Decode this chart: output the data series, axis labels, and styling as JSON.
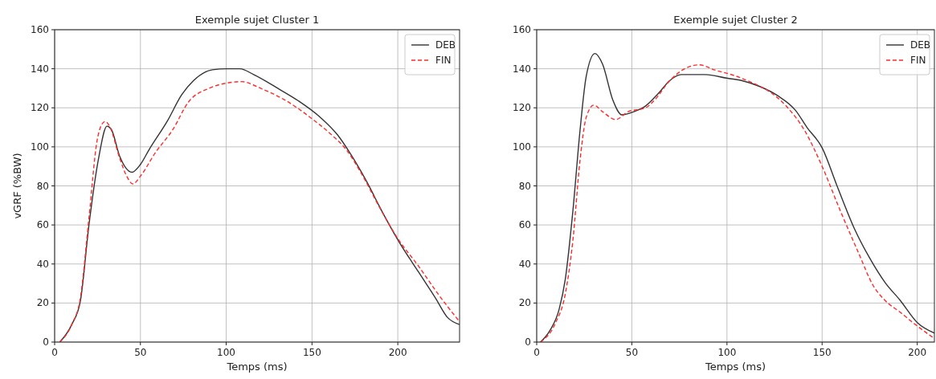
{
  "chart_data": [
    {
      "type": "line",
      "title": "Exemple sujet Cluster 1",
      "xlabel": "Temps (ms)",
      "ylabel": "vGRF (%BW)",
      "xlim": [
        0,
        236
      ],
      "ylim": [
        0,
        160
      ],
      "xticks": [
        0,
        50,
        100,
        150,
        200
      ],
      "yticks": [
        0,
        20,
        40,
        60,
        80,
        100,
        120,
        140,
        160
      ],
      "grid": true,
      "legend": "top right",
      "series": [
        {
          "name": "DEB",
          "color": "#333333",
          "line_style": "solid",
          "x": [
            3,
            10,
            15,
            20,
            25.6,
            30.5,
            33,
            38,
            45,
            50,
            55,
            66,
            74,
            81,
            92,
            100.5,
            108,
            116,
            130,
            142,
            155,
            165,
            172,
            182,
            191,
            200.7,
            212,
            222,
            229,
            236
          ],
          "values": [
            0,
            9,
            21,
            60,
            94,
            110.6,
            109,
            95,
            87,
            91,
            98.5,
            113.7,
            126.6,
            134,
            139.5,
            140,
            140,
            137,
            130,
            123.6,
            115,
            106,
            97,
            82,
            66.6,
            51.4,
            36,
            22.5,
            12.6,
            9
          ]
        },
        {
          "name": "FIN",
          "color": "#ff2a2a",
          "line_style": "dashed",
          "x": [
            3,
            10,
            15,
            20,
            24.7,
            27.4,
            29.4,
            32,
            38,
            42,
            45.6,
            50,
            58.7,
            69,
            78,
            90,
            100.5,
            109,
            121,
            133.6,
            151,
            161.6,
            170,
            179,
            189,
            200,
            212,
            224,
            235.5
          ],
          "values": [
            0,
            9,
            22.5,
            63.5,
            103,
            111.4,
            113,
            110.6,
            94,
            85,
            81,
            85,
            97,
            109,
            123,
            130,
            132.7,
            133.4,
            129.6,
            124.3,
            113.7,
            106,
            98.5,
            86,
            69.6,
            53,
            39,
            24,
            11
          ]
        }
      ]
    },
    {
      "type": "line",
      "title": "Exemple sujet Cluster 2",
      "xlabel": "Temps (ms)",
      "xlim": [
        0,
        209
      ],
      "ylim": [
        0,
        160
      ],
      "xticks": [
        0,
        50,
        100,
        150,
        200
      ],
      "yticks": [
        0,
        20,
        40,
        60,
        80,
        100,
        120,
        140,
        160
      ],
      "grid": true,
      "legend": "top right",
      "series": [
        {
          "name": "DEB",
          "color": "#333333",
          "line_style": "solid",
          "x": [
            2,
            7,
            11.8,
            15,
            19,
            22.8,
            26,
            30.6,
            34.6,
            40,
            44.8,
            51,
            57.3,
            63.6,
            70,
            76,
            88.8,
            99.8,
            107.6,
            117,
            126.5,
            136,
            142,
            150,
            158,
            167,
            175,
            183,
            191,
            200,
            209
          ],
          "values": [
            0,
            6,
            16.8,
            32,
            67,
            108.7,
            136,
            147.8,
            142.4,
            124,
            116.4,
            118,
            121,
            127,
            134,
            137,
            137,
            135.2,
            134,
            131,
            126.3,
            118.7,
            110,
            99.5,
            79.6,
            58,
            43,
            30.6,
            21.4,
            10,
            4.6
          ]
        },
        {
          "name": "FIN",
          "color": "#ff2a2a",
          "line_style": "dashed",
          "x": [
            2,
            10,
            15,
            19,
            22.8,
            26,
            30,
            34.6,
            41.6,
            48,
            57.3,
            62,
            70,
            77.8,
            85.6,
            93.5,
            104.5,
            114,
            121.8,
            131,
            140.6,
            150,
            159.5,
            169,
            176.8,
            183,
            191,
            198.7,
            209
          ],
          "values": [
            0,
            10,
            24.5,
            52,
            93.4,
            115,
            121.4,
            118,
            114,
            118,
            120,
            124,
            134,
            140,
            142,
            139.4,
            136.3,
            132.5,
            128.6,
            121,
            108.7,
            90,
            67.4,
            46,
            29,
            21.4,
            15.3,
            9.2,
            1.8
          ]
        }
      ]
    }
  ]
}
